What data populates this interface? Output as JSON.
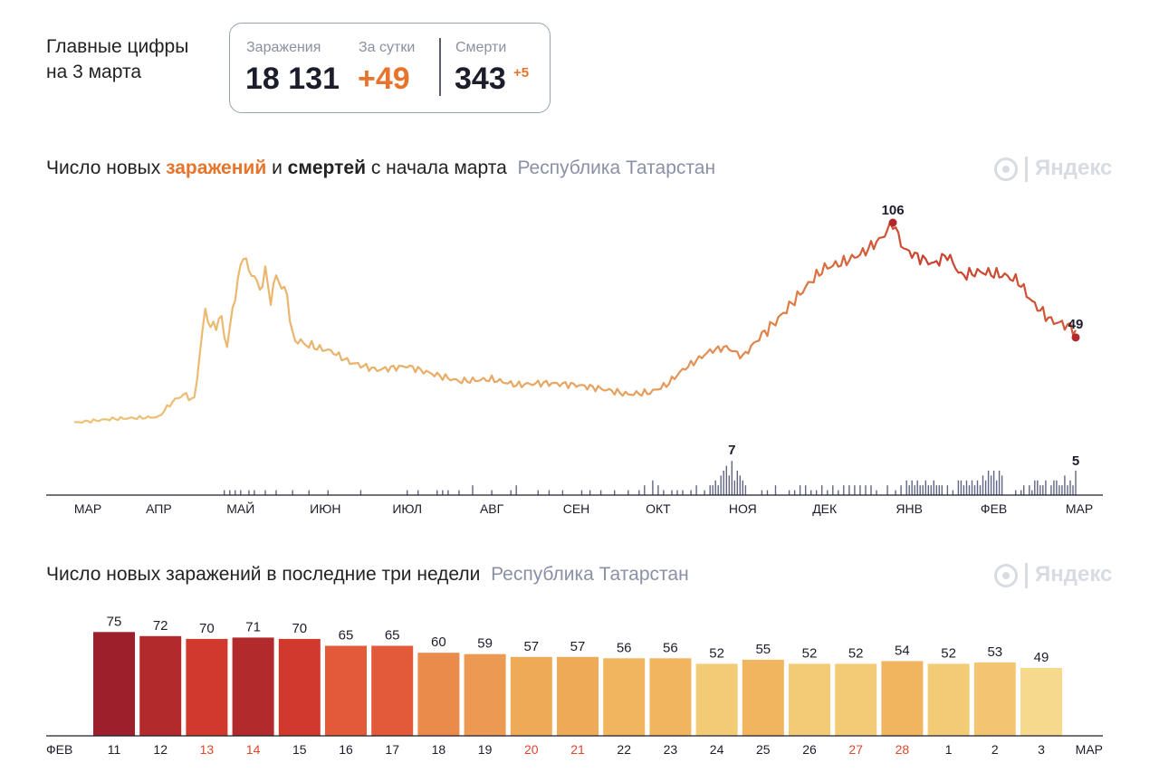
{
  "summary": {
    "headline_line1": "Главные цифры",
    "headline_line2": "на 3 марта",
    "infections_label": "Заражения",
    "infections_value": "18 131",
    "daily_label": "За сутки",
    "daily_value": "+49",
    "deaths_label": "Смерти",
    "deaths_value": "343",
    "deaths_delta": "+5"
  },
  "colors": {
    "accent": "#e8732a",
    "dark": "#1c1d2b",
    "muted": "#8a90a6",
    "deaths_bar": "#5f6585"
  },
  "logo_text": "Яндекс",
  "chart1": {
    "title_part1": "Число новых ",
    "title_infections": "заражений",
    "title_part2": " и ",
    "title_deaths": "смертей",
    "title_part3": " с начала марта",
    "region": "Республика Татарстан",
    "peak_label": "106",
    "last_label": "49",
    "deaths_peak_label": "7",
    "deaths_last_label": "5",
    "months": [
      "МАР",
      "АПР",
      "МАЙ",
      "ИЮН",
      "ИЮЛ",
      "АВГ",
      "СЕН",
      "ОКТ",
      "НОЯ",
      "ДЕК",
      "ЯНВ",
      "ФЕВ",
      "МАР"
    ]
  },
  "chart2": {
    "title": "Число новых заражений в последние три недели",
    "region": "Республика Татарстан",
    "start_month": "ФЕВ",
    "end_month": "МАР"
  },
  "chart_data": [
    {
      "type": "line",
      "title": "Число новых заражений и смертей с начала марта",
      "x_range": [
        "2020-03-01",
        "2021-03-03"
      ],
      "series": [
        {
          "name": "заражений",
          "anchors": [
            [
              "2020-03-01",
              0
            ],
            [
              "2020-03-15",
              2
            ],
            [
              "2020-04-01",
              3
            ],
            [
              "2020-04-05",
              10
            ],
            [
              "2020-04-10",
              15
            ],
            [
              "2020-04-14",
              12
            ],
            [
              "2020-04-18",
              60
            ],
            [
              "2020-04-20",
              50
            ],
            [
              "2020-04-24",
              55
            ],
            [
              "2020-04-26",
              40
            ],
            [
              "2020-04-28",
              60
            ],
            [
              "2020-04-30",
              75
            ],
            [
              "2020-05-02",
              90
            ],
            [
              "2020-05-04",
              80
            ],
            [
              "2020-05-06",
              78
            ],
            [
              "2020-05-08",
              70
            ],
            [
              "2020-05-10",
              80
            ],
            [
              "2020-05-12",
              65
            ],
            [
              "2020-05-14",
              78
            ],
            [
              "2020-05-16",
              72
            ],
            [
              "2020-05-18",
              68
            ],
            [
              "2020-05-20",
              45
            ],
            [
              "2020-05-24",
              42
            ],
            [
              "2020-05-28",
              40
            ],
            [
              "2020-06-03",
              38
            ],
            [
              "2020-06-10",
              32
            ],
            [
              "2020-06-20",
              28
            ],
            [
              "2020-07-01",
              30
            ],
            [
              "2020-07-10",
              26
            ],
            [
              "2020-07-20",
              22
            ],
            [
              "2020-08-01",
              23
            ],
            [
              "2020-08-10",
              20
            ],
            [
              "2020-08-20",
              21
            ],
            [
              "2020-09-01",
              20
            ],
            [
              "2020-09-10",
              18
            ],
            [
              "2020-09-20",
              15
            ],
            [
              "2020-09-28",
              16
            ],
            [
              "2020-10-04",
              20
            ],
            [
              "2020-10-10",
              28
            ],
            [
              "2020-10-20",
              38
            ],
            [
              "2020-10-26",
              40
            ],
            [
              "2020-11-01",
              35
            ],
            [
              "2020-11-07",
              45
            ],
            [
              "2020-11-14",
              55
            ],
            [
              "2020-11-20",
              65
            ],
            [
              "2020-11-26",
              75
            ],
            [
              "2020-12-01",
              82
            ],
            [
              "2020-12-08",
              85
            ],
            [
              "2020-12-15",
              90
            ],
            [
              "2020-12-22",
              98
            ],
            [
              "2020-12-26",
              106
            ],
            [
              "2020-12-30",
              92
            ],
            [
              "2021-01-04",
              88
            ],
            [
              "2021-01-10",
              84
            ],
            [
              "2021-01-15",
              89
            ],
            [
              "2021-01-20",
              78
            ],
            [
              "2021-01-27",
              80
            ],
            [
              "2021-02-05",
              78
            ],
            [
              "2021-02-10",
              75
            ],
            [
              "2021-02-15",
              64
            ],
            [
              "2021-02-22",
              54
            ],
            [
              "2021-02-27",
              52
            ],
            [
              "2021-03-03",
              49
            ]
          ]
        },
        {
          "name": "смертей",
          "values_by_date": {
            "2020-04-25": 1,
            "2020-04-27": 1,
            "2020-04-29": 1,
            "2020-05-01": 1,
            "2020-05-04": 1,
            "2020-05-06": 1,
            "2020-05-10": 1,
            "2020-05-14": 1,
            "2020-05-20": 1,
            "2020-05-26": 1,
            "2020-06-02": 1,
            "2020-06-14": 1,
            "2020-07-01": 1,
            "2020-07-05": 1,
            "2020-07-12": 1,
            "2020-07-14": 1,
            "2020-07-16": 1,
            "2020-07-20": 1,
            "2020-07-25": 2,
            "2020-08-01": 1,
            "2020-08-08": 1,
            "2020-08-10": 2,
            "2020-08-18": 1,
            "2020-08-22": 1,
            "2020-08-27": 1,
            "2020-09-03": 1,
            "2020-09-06": 1,
            "2020-09-10": 1,
            "2020-09-15": 1,
            "2020-09-20": 1,
            "2020-09-24": 1,
            "2020-09-26": 2,
            "2020-09-29": 3,
            "2020-10-01": 2,
            "2020-10-03": 1,
            "2020-10-06": 1,
            "2020-10-08": 1,
            "2020-10-10": 1,
            "2020-10-13": 1,
            "2020-10-15": 2,
            "2020-10-18": 1,
            "2020-10-20": 2,
            "2020-10-21": 2,
            "2020-10-22": 3,
            "2020-10-23": 2,
            "2020-10-24": 4,
            "2020-10-25": 5,
            "2020-10-26": 6,
            "2020-10-27": 4,
            "2020-10-28": 7,
            "2020-10-29": 3,
            "2020-10-30": 5,
            "2020-10-31": 4,
            "2020-11-01": 3,
            "2020-11-02": 2,
            "2020-11-08": 1,
            "2020-11-10": 1,
            "2020-11-13": 2,
            "2020-11-18": 1,
            "2020-11-20": 1,
            "2020-11-22": 2,
            "2020-11-24": 2,
            "2020-11-26": 1,
            "2020-11-28": 1,
            "2020-11-30": 2,
            "2020-12-02": 1,
            "2020-12-04": 2,
            "2020-12-06": 1,
            "2020-12-08": 2,
            "2020-12-10": 2,
            "2020-12-12": 2,
            "2020-12-14": 2,
            "2020-12-16": 2,
            "2020-12-18": 2,
            "2020-12-20": 1,
            "2020-12-24": 2,
            "2020-12-27": 1,
            "2020-12-29": 2,
            "2020-12-31": 3,
            "2021-01-01": 2,
            "2021-01-02": 3,
            "2021-01-03": 2,
            "2021-01-04": 3,
            "2021-01-05": 2,
            "2021-01-06": 2,
            "2021-01-07": 3,
            "2021-01-08": 2,
            "2021-01-09": 2,
            "2021-01-10": 3,
            "2021-01-11": 2,
            "2021-01-12": 2,
            "2021-01-13": 2,
            "2021-01-15": 2,
            "2021-01-17": 1,
            "2021-01-19": 3,
            "2021-01-20": 3,
            "2021-01-21": 2,
            "2021-01-22": 3,
            "2021-01-23": 2,
            "2021-01-24": 3,
            "2021-01-25": 2,
            "2021-01-26": 3,
            "2021-01-27": 2,
            "2021-01-28": 4,
            "2021-01-29": 3,
            "2021-01-30": 5,
            "2021-01-31": 4,
            "2021-02-01": 5,
            "2021-02-02": 3,
            "2021-02-03": 5,
            "2021-02-04": 4,
            "2021-02-09": 1,
            "2021-02-11": 1,
            "2021-02-12": 2,
            "2021-02-14": 2,
            "2021-02-15": 1,
            "2021-02-16": 3,
            "2021-02-17": 3,
            "2021-02-18": 2,
            "2021-02-19": 2,
            "2021-02-20": 3,
            "2021-02-22": 2,
            "2021-02-23": 3,
            "2021-02-24": 3,
            "2021-02-25": 2,
            "2021-02-26": 2,
            "2021-02-27": 4,
            "2021-02-28": 2,
            "2021-03-01": 3,
            "2021-03-02": 2,
            "2021-03-03": 5
          }
        }
      ],
      "annotations": [
        {
          "series": "заражений",
          "date": "2020-12-26",
          "label": "106"
        },
        {
          "series": "заражений",
          "date": "2021-03-03",
          "label": "49"
        },
        {
          "series": "смертей",
          "date": "2020-10-28",
          "label": "7"
        },
        {
          "series": "смертей",
          "date": "2021-03-03",
          "label": "5"
        }
      ],
      "xticks": [
        "МАР",
        "АПР",
        "МАЙ",
        "ИЮН",
        "ИЮЛ",
        "АВГ",
        "СЕН",
        "ОКТ",
        "НОЯ",
        "ДЕК",
        "ЯНВ",
        "ФЕВ",
        "МАР"
      ]
    },
    {
      "type": "bar",
      "title": "Число новых заражений в последние три недели",
      "categories": [
        "11",
        "12",
        "13",
        "14",
        "15",
        "16",
        "17",
        "18",
        "19",
        "20",
        "21",
        "22",
        "23",
        "24",
        "25",
        "26",
        "27",
        "28",
        "1",
        "2",
        "3"
      ],
      "values": [
        75,
        72,
        70,
        71,
        70,
        65,
        65,
        60,
        59,
        57,
        57,
        56,
        56,
        52,
        55,
        52,
        52,
        54,
        52,
        53,
        49
      ],
      "weekend": [
        false,
        false,
        true,
        true,
        false,
        false,
        false,
        false,
        false,
        true,
        true,
        false,
        false,
        false,
        false,
        false,
        true,
        true,
        false,
        false,
        false
      ],
      "bar_colors": [
        "#9e1f2c",
        "#b32a2c",
        "#cf3a2c",
        "#b32a2c",
        "#cf3a2c",
        "#e35a3a",
        "#e35a3a",
        "#ea8a4b",
        "#ec9a52",
        "#efaa58",
        "#efaa58",
        "#f1b55f",
        "#f1b55f",
        "#f4cb75",
        "#f1b55f",
        "#f4cb75",
        "#f4cb75",
        "#f1b55f",
        "#f4cb75",
        "#f4c570",
        "#f6d98c"
      ],
      "xlabel_left": "ФЕВ",
      "xlabel_right": "МАР"
    }
  ]
}
